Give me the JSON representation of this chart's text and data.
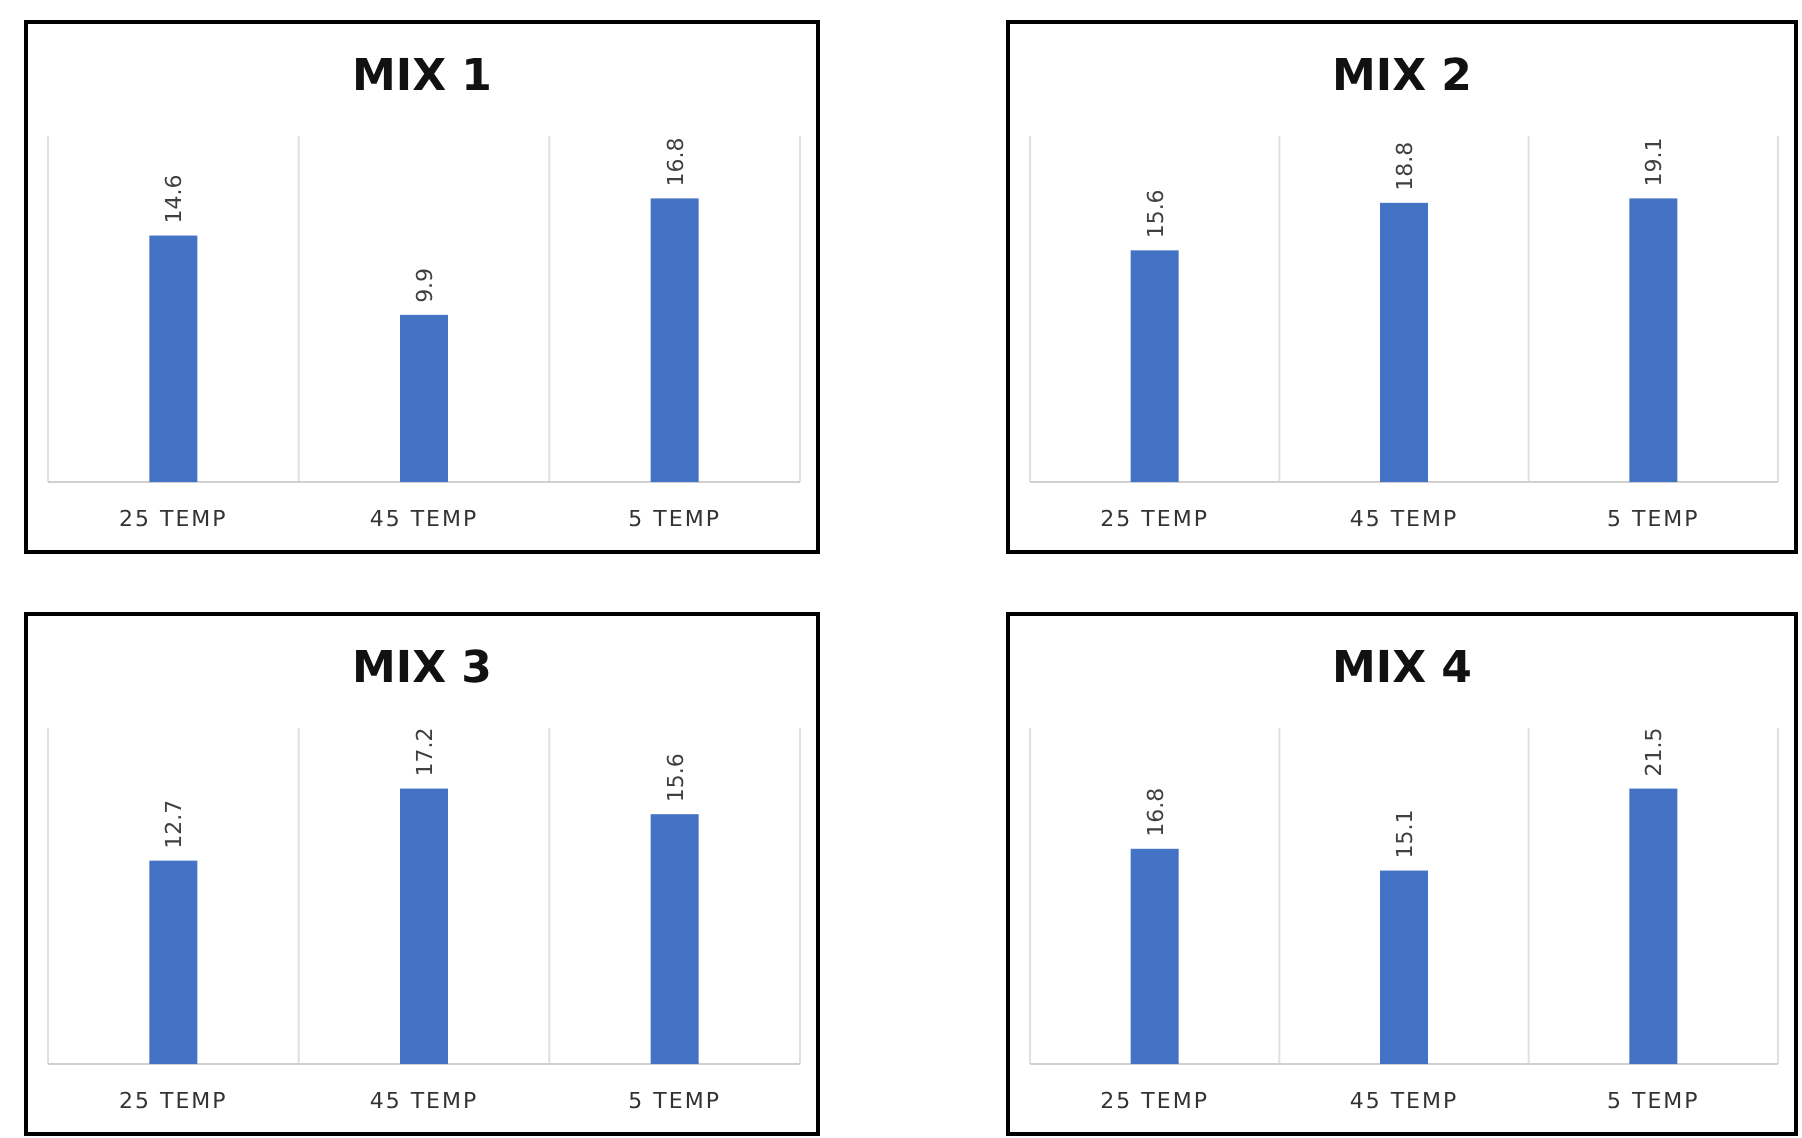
{
  "chart_data": [
    {
      "type": "bar",
      "title": "MIX 1",
      "categories": [
        "25 TEMP",
        "45 TEMP",
        "5 TEMP"
      ],
      "values": [
        14.6,
        9.9,
        16.8
      ],
      "color": "#4472c4",
      "data_labels": true
    },
    {
      "type": "bar",
      "title": "MIX 2",
      "categories": [
        "25 TEMP",
        "45 TEMP",
        "5 TEMP"
      ],
      "values": [
        15.6,
        18.8,
        19.1
      ],
      "color": "#4472c4",
      "data_labels": true
    },
    {
      "type": "bar",
      "title": "MIX 3",
      "categories": [
        "25 TEMP",
        "45 TEMP",
        "5 TEMP"
      ],
      "values": [
        12.7,
        17.2,
        15.6
      ],
      "color": "#4472c4",
      "data_labels": true
    },
    {
      "type": "bar",
      "title": "MIX 4",
      "categories": [
        "25 TEMP",
        "45 TEMP",
        "5 TEMP"
      ],
      "values": [
        16.8,
        15.1,
        21.5
      ],
      "color": "#4472c4",
      "data_labels": true
    }
  ]
}
